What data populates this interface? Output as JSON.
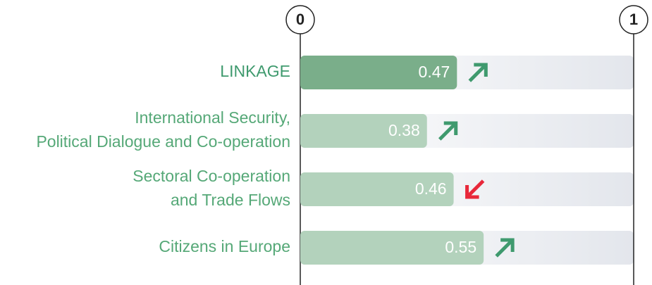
{
  "chart_data": {
    "type": "hbar",
    "categories": [
      [
        "LINKAGE"
      ],
      [
        "International Security,",
        "Political Dialogue and Co-operation"
      ],
      [
        "Sectoral Co-operation",
        "and Trade Flows"
      ],
      [
        "Citizens in Europe"
      ]
    ],
    "values": [
      0.47,
      0.38,
      0.46,
      0.55
    ],
    "colors": [
      "#7aae8a",
      "#b3d2bc",
      "#b3d2bc",
      "#b3d2bc"
    ],
    "label_colors": [
      "#3f9a6e",
      "#55a877",
      "#55a877",
      "#55a877"
    ],
    "trends": [
      "up",
      "up",
      "down",
      "up"
    ],
    "trend_colors": {
      "up": "#3f9a6e",
      "down": "#e8283a"
    },
    "xlim": [
      0,
      1
    ],
    "xticks": [
      0,
      1
    ]
  }
}
